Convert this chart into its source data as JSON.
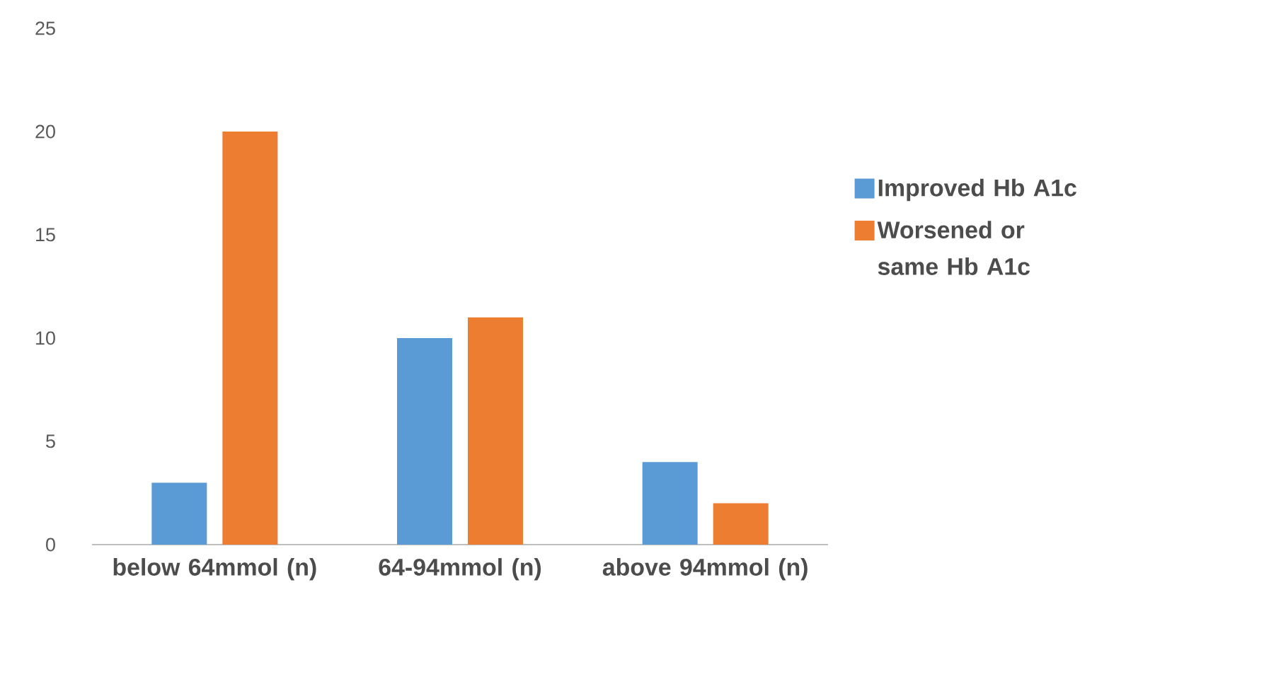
{
  "chart_data": {
    "type": "bar",
    "categories": [
      "below 64mmol (n)",
      "64-94mmol (n)",
      "above 94mmol (n)"
    ],
    "series": [
      {
        "name": "Improved Hb A1c",
        "color": "#5b9bd5",
        "values": [
          3,
          10,
          4
        ]
      },
      {
        "name": "Worsened or same Hb A1c",
        "color": "#ed7d31",
        "values": [
          20,
          11,
          2
        ]
      }
    ],
    "ylim": [
      0,
      25
    ],
    "yticks": [
      0,
      5,
      10,
      15,
      20,
      25
    ],
    "legend": "right"
  }
}
